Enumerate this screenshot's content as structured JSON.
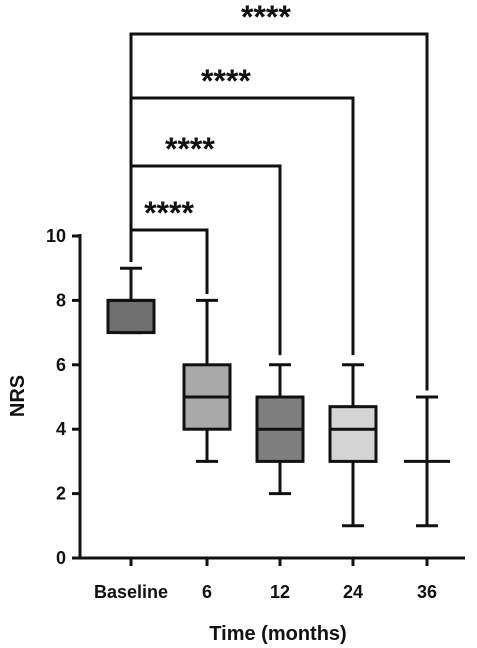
{
  "chart_data": {
    "type": "box",
    "xlabel": "Time (months)",
    "ylabel": "NRS",
    "ylim": [
      0,
      10
    ],
    "yticks": [
      0,
      2,
      4,
      6,
      8,
      10
    ],
    "categories": [
      "Baseline",
      "6",
      "12",
      "24",
      "36"
    ],
    "boxes": [
      {
        "category": "Baseline",
        "min": 7,
        "q1": 7,
        "median": 8,
        "q3": 8,
        "max": 9,
        "color": "#6f6f6f"
      },
      {
        "category": "6",
        "min": 3,
        "q1": 4,
        "median": 5,
        "q3": 6,
        "max": 8,
        "color": "#a9a9a9"
      },
      {
        "category": "12",
        "min": 2,
        "q1": 3,
        "median": 4,
        "q3": 5,
        "max": 6,
        "color": "#7f7f7f"
      },
      {
        "category": "24",
        "min": 1,
        "q1": 3,
        "median": 4,
        "q3": 4.7,
        "max": 6,
        "color": "#d4d4d4"
      },
      {
        "category": "36",
        "min": 1,
        "q1": 3,
        "median": 3,
        "q3": 3,
        "max": 5,
        "color": "#ffffff"
      }
    ],
    "significance": [
      {
        "from": "Baseline",
        "to": "6",
        "label": "****"
      },
      {
        "from": "Baseline",
        "to": "12",
        "label": "****"
      },
      {
        "from": "Baseline",
        "to": "24",
        "label": "****"
      },
      {
        "from": "Baseline",
        "to": "36",
        "label": "****"
      }
    ]
  }
}
